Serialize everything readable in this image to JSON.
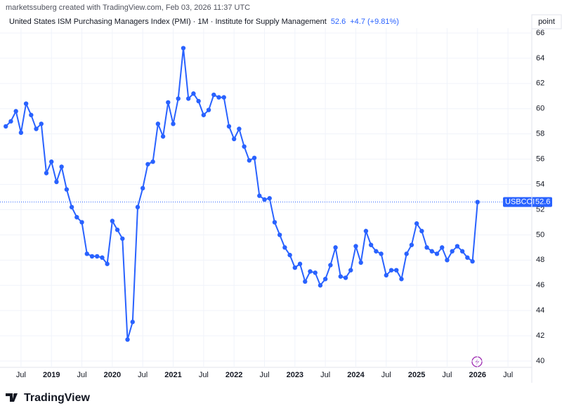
{
  "header": {
    "credit": "marketssuberg created with TradingView.com, Feb 03, 2026 11:37 UTC",
    "brand": "TradingView"
  },
  "chart_data": {
    "type": "line",
    "title": "United States ISM Purchasing Managers Index (PMI) · 1M · Institute for Supply Management",
    "symbol": "USBCOI",
    "change_label": "+4.7 (+9.81%)",
    "y_axis_label": "point",
    "color": "#2962ff",
    "grid": true,
    "x": [
      "2018-04",
      "2018-05",
      "2018-06",
      "2018-07",
      "2018-08",
      "2018-09",
      "2018-10",
      "2018-11",
      "2018-12",
      "2019-01",
      "2019-02",
      "2019-03",
      "2019-04",
      "2019-05",
      "2019-06",
      "2019-07",
      "2019-08",
      "2019-09",
      "2019-10",
      "2019-11",
      "2019-12",
      "2020-01",
      "2020-02",
      "2020-03",
      "2020-04",
      "2020-05",
      "2020-06",
      "2020-07",
      "2020-08",
      "2020-09",
      "2020-10",
      "2020-11",
      "2020-12",
      "2021-01",
      "2021-02",
      "2021-03",
      "2021-04",
      "2021-05",
      "2021-06",
      "2021-07",
      "2021-08",
      "2021-09",
      "2021-10",
      "2021-11",
      "2021-12",
      "2022-01",
      "2022-02",
      "2022-03",
      "2022-04",
      "2022-05",
      "2022-06",
      "2022-07",
      "2022-08",
      "2022-09",
      "2022-10",
      "2022-11",
      "2022-12",
      "2023-01",
      "2023-02",
      "2023-03",
      "2023-04",
      "2023-05",
      "2023-06",
      "2023-07",
      "2023-08",
      "2023-09",
      "2023-10",
      "2023-11",
      "2023-12",
      "2024-01",
      "2024-02",
      "2024-03",
      "2024-04",
      "2024-05",
      "2024-06",
      "2024-07",
      "2024-08",
      "2024-09",
      "2024-10",
      "2024-11",
      "2024-12",
      "2025-01",
      "2025-02",
      "2025-03",
      "2025-04",
      "2025-05",
      "2025-06",
      "2025-07",
      "2025-08",
      "2025-09",
      "2025-10",
      "2025-11",
      "2025-12",
      "2026-01"
    ],
    "values": [
      58.6,
      59.0,
      59.8,
      58.1,
      60.4,
      59.5,
      58.4,
      58.8,
      54.9,
      55.8,
      54.2,
      55.4,
      53.6,
      52.2,
      51.4,
      51.0,
      48.5,
      48.3,
      48.3,
      48.2,
      47.7,
      51.1,
      50.4,
      49.7,
      41.7,
      43.1,
      52.2,
      53.7,
      55.6,
      55.8,
      58.8,
      57.8,
      60.5,
      58.8,
      60.8,
      64.8,
      60.8,
      61.2,
      60.6,
      59.5,
      59.9,
      61.1,
      60.9,
      60.9,
      58.6,
      57.6,
      58.4,
      57.0,
      55.9,
      56.1,
      53.1,
      52.8,
      52.9,
      51.0,
      50.0,
      49.0,
      48.4,
      47.4,
      47.7,
      46.3,
      47.1,
      47.0,
      46.0,
      46.5,
      47.6,
      49.0,
      46.7,
      46.6,
      47.2,
      49.1,
      47.8,
      50.3,
      49.2,
      48.7,
      48.5,
      46.8,
      47.2,
      47.2,
      46.5,
      48.5,
      49.2,
      50.9,
      50.3,
      49.0,
      48.7,
      48.5,
      49.0,
      48.0,
      48.7,
      49.1,
      48.7,
      48.2,
      47.9,
      52.6
    ],
    "xlim": [
      "2018-03",
      "2026-11"
    ],
    "xticks": [
      {
        "value": "2018-07",
        "label": "Jul"
      },
      {
        "value": "2019-01",
        "label": "2019"
      },
      {
        "value": "2019-07",
        "label": "Jul"
      },
      {
        "value": "2020-01",
        "label": "2020"
      },
      {
        "value": "2020-07",
        "label": "Jul"
      },
      {
        "value": "2021-01",
        "label": "2021"
      },
      {
        "value": "2021-07",
        "label": "Jul"
      },
      {
        "value": "2022-01",
        "label": "2022"
      },
      {
        "value": "2022-07",
        "label": "Jul"
      },
      {
        "value": "2023-01",
        "label": "2023"
      },
      {
        "value": "2023-07",
        "label": "Jul"
      },
      {
        "value": "2024-01",
        "label": "2024"
      },
      {
        "value": "2024-07",
        "label": "Jul"
      },
      {
        "value": "2025-01",
        "label": "2025"
      },
      {
        "value": "2025-07",
        "label": "Jul"
      },
      {
        "value": "2026-01",
        "label": "2026"
      },
      {
        "value": "2026-07",
        "label": "Jul"
      }
    ],
    "ylim": [
      39.5,
      66.5
    ],
    "yticks": [
      40,
      42,
      44,
      46,
      48,
      50,
      52,
      54,
      56,
      58,
      60,
      62,
      64,
      66
    ]
  }
}
